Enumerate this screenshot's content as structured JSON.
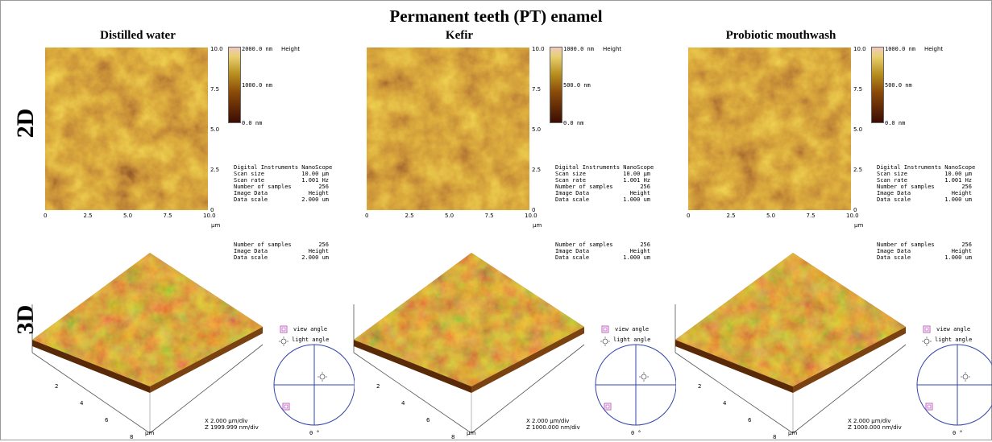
{
  "title": "Permanent teeth (PT) enamel",
  "row_labels": {
    "row1": "2D",
    "row2": "3D"
  },
  "panels": [
    {
      "name": "Distilled water",
      "scale_top": "2000.0 nm",
      "scale_mid": "1000.0 nm",
      "scale_bottom": "0.0 nm",
      "height_label": "Height",
      "x_ticks": [
        "0",
        "2.5",
        "5.0",
        "7.5",
        "10.0"
      ],
      "y_ticks": [
        "10.0",
        "7.5",
        "5.0",
        "2.5",
        "0"
      ],
      "unit": "µm",
      "info_header": "Digital Instruments NanoScope",
      "info": [
        {
          "k": "Scan size",
          "v": "10.00 µm"
        },
        {
          "k": "Scan rate",
          "v": "1.001 Hz"
        },
        {
          "k": "Number of samples",
          "v": "256"
        },
        {
          "k": "Image Data",
          "v": "Height"
        },
        {
          "k": "Data scale",
          "v": "2.000 um"
        }
      ],
      "info3d": [
        {
          "k": "Number of samples",
          "v": "256"
        },
        {
          "k": "Image Data",
          "v": "Height"
        },
        {
          "k": "Data scale",
          "v": "2.000 um"
        }
      ],
      "axis3d_ticks": [
        "2",
        "4",
        "6",
        "8"
      ],
      "axis3d_unit": "µm",
      "xdiv": "X  2.000  µm/div",
      "zdiv": "Z  1999.999  nm/div",
      "view_angle": "view angle",
      "light_angle": "light angle",
      "angle": "0 °"
    },
    {
      "name": "Kefir",
      "scale_top": "1000.0 nm",
      "scale_mid": "500.0 nm",
      "scale_bottom": "0.0 nm",
      "height_label": "Height",
      "x_ticks": [
        "0",
        "2.5",
        "5.0",
        "7.5",
        "10.0"
      ],
      "y_ticks": [
        "10.0",
        "7.5",
        "5.0",
        "2.5",
        "0"
      ],
      "unit": "µm",
      "info_header": "Digital Instruments NanoScope",
      "info": [
        {
          "k": "Scan size",
          "v": "10.00 µm"
        },
        {
          "k": "Scan rate",
          "v": "1.001 Hz"
        },
        {
          "k": "Number of samples",
          "v": "256"
        },
        {
          "k": "Image Data",
          "v": "Height"
        },
        {
          "k": "Data scale",
          "v": "1.000 um"
        }
      ],
      "info3d": [
        {
          "k": "Number of samples",
          "v": "256"
        },
        {
          "k": "Image Data",
          "v": "Height"
        },
        {
          "k": "Data scale",
          "v": "1.000 um"
        }
      ],
      "axis3d_ticks": [
        "2",
        "4",
        "6",
        "8"
      ],
      "axis3d_unit": "µm",
      "xdiv": "X  2.000  µm/div",
      "zdiv": "Z  1000.000  nm/div",
      "view_angle": "view angle",
      "light_angle": "light angle",
      "angle": "0 °"
    },
    {
      "name": "Probiotic mouthwash",
      "scale_top": "1000.0 nm",
      "scale_mid": "500.0 nm",
      "scale_bottom": "0.0 nm",
      "height_label": "Height",
      "x_ticks": [
        "0",
        "2.5",
        "5.0",
        "7.5",
        "10.0"
      ],
      "y_ticks": [
        "10.0",
        "7.5",
        "5.0",
        "2.5",
        "0"
      ],
      "unit": "µm",
      "info_header": "Digital Instruments NanoScope",
      "info": [
        {
          "k": "Scan size",
          "v": "10.00 µm"
        },
        {
          "k": "Scan rate",
          "v": "1.001 Hz"
        },
        {
          "k": "Number of samples",
          "v": "256"
        },
        {
          "k": "Image Data",
          "v": "Height"
        },
        {
          "k": "Data scale",
          "v": "1.000 um"
        }
      ],
      "info3d": [
        {
          "k": "Number of samples",
          "v": "256"
        },
        {
          "k": "Image Data",
          "v": "Height"
        },
        {
          "k": "Data scale",
          "v": "1.000 um"
        }
      ],
      "axis3d_ticks": [
        "2",
        "4",
        "6",
        "8"
      ],
      "axis3d_unit": "µm",
      "xdiv": "X  2.000  µm/div",
      "zdiv": "Z  1000.000  nm/div",
      "view_angle": "view angle",
      "light_angle": "light angle",
      "angle": "0 °"
    }
  ],
  "colors": {
    "afm_dark": "#3a1005",
    "afm_mid": "#a65a10",
    "afm_light": "#d9b030",
    "circle": "#3344aa",
    "marker": "#c060c0"
  }
}
